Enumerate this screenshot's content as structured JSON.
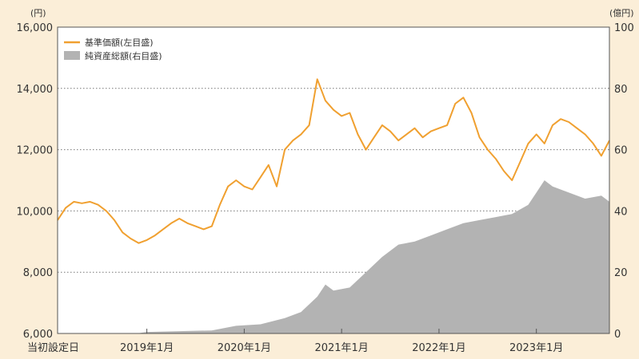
{
  "chart_data": {
    "type": "line",
    "left_unit": "(円)",
    "right_unit": "(億円)",
    "left_axis": {
      "min": 6000,
      "max": 16000,
      "ticks": [
        6000,
        8000,
        10000,
        12000,
        14000,
        16000
      ],
      "tick_labels": [
        "6,000",
        "8,000",
        "10,000",
        "12,000",
        "14,000",
        "16,000"
      ]
    },
    "right_axis": {
      "min": 0,
      "max": 100,
      "ticks": [
        0,
        20,
        40,
        60,
        80,
        100
      ],
      "tick_labels": [
        "0",
        "20",
        "40",
        "60",
        "80",
        "100"
      ]
    },
    "x_axis": {
      "start": "2018-02",
      "end": "2023-10",
      "tick_dates": [
        "2019-01",
        "2020-01",
        "2021-01",
        "2022-01",
        "2023-01"
      ],
      "labels": [
        {
          "date": "2018-02",
          "text": "当初設定日"
        },
        {
          "date": "2019-01",
          "text": "2019年1月"
        },
        {
          "date": "2020-01",
          "text": "2020年1月"
        },
        {
          "date": "2021-01",
          "text": "2021年1月"
        },
        {
          "date": "2022-01",
          "text": "2022年1月"
        },
        {
          "date": "2023-01",
          "text": "2023年1月"
        }
      ]
    },
    "grid": true,
    "legend_position": "top-left",
    "series": [
      {
        "name": "基準価額(左目盛)",
        "axis": "left",
        "kind": "line",
        "color": "#f0a030",
        "points": [
          [
            "2018-02",
            9700
          ],
          [
            "2018-03",
            10100
          ],
          [
            "2018-04",
            10300
          ],
          [
            "2018-05",
            10250
          ],
          [
            "2018-06",
            10300
          ],
          [
            "2018-07",
            10200
          ],
          [
            "2018-08",
            10000
          ],
          [
            "2018-09",
            9700
          ],
          [
            "2018-10",
            9300
          ],
          [
            "2018-11",
            9100
          ],
          [
            "2018-12",
            8950
          ],
          [
            "2019-01",
            9050
          ],
          [
            "2019-02",
            9200
          ],
          [
            "2019-03",
            9400
          ],
          [
            "2019-04",
            9600
          ],
          [
            "2019-05",
            9750
          ],
          [
            "2019-06",
            9600
          ],
          [
            "2019-07",
            9500
          ],
          [
            "2019-08",
            9400
          ],
          [
            "2019-09",
            9500
          ],
          [
            "2019-10",
            10200
          ],
          [
            "2019-11",
            10800
          ],
          [
            "2019-12",
            11000
          ],
          [
            "2020-01",
            10800
          ],
          [
            "2020-02",
            10700
          ],
          [
            "2020-03",
            11100
          ],
          [
            "2020-04",
            11500
          ],
          [
            "2020-05",
            10800
          ],
          [
            "2020-06",
            12000
          ],
          [
            "2020-07",
            12300
          ],
          [
            "2020-08",
            12500
          ],
          [
            "2020-09",
            12800
          ],
          [
            "2020-10",
            14300
          ],
          [
            "2020-11",
            13600
          ],
          [
            "2020-12",
            13300
          ],
          [
            "2021-01",
            13100
          ],
          [
            "2021-02",
            13200
          ],
          [
            "2021-03",
            12500
          ],
          [
            "2021-04",
            12000
          ],
          [
            "2021-05",
            12400
          ],
          [
            "2021-06",
            12800
          ],
          [
            "2021-07",
            12600
          ],
          [
            "2021-08",
            12300
          ],
          [
            "2021-09",
            12500
          ],
          [
            "2021-10",
            12700
          ],
          [
            "2021-11",
            12400
          ],
          [
            "2021-12",
            12600
          ],
          [
            "2022-01",
            12700
          ],
          [
            "2022-02",
            12800
          ],
          [
            "2022-03",
            13500
          ],
          [
            "2022-04",
            13700
          ],
          [
            "2022-05",
            13200
          ],
          [
            "2022-06",
            12400
          ],
          [
            "2022-07",
            12000
          ],
          [
            "2022-08",
            11700
          ],
          [
            "2022-09",
            11300
          ],
          [
            "2022-10",
            11000
          ],
          [
            "2022-11",
            11600
          ],
          [
            "2022-12",
            12200
          ],
          [
            "2023-01",
            12500
          ],
          [
            "2023-02",
            12200
          ],
          [
            "2023-03",
            12800
          ],
          [
            "2023-04",
            13000
          ],
          [
            "2023-05",
            12900
          ],
          [
            "2023-06",
            12700
          ],
          [
            "2023-07",
            12500
          ],
          [
            "2023-08",
            12200
          ],
          [
            "2023-09",
            11800
          ],
          [
            "2023-10",
            12300
          ]
        ]
      },
      {
        "name": "純資産総額(右目盛)",
        "axis": "right",
        "kind": "area",
        "color": "#b3b3b3",
        "points": [
          [
            "2018-02",
            0
          ],
          [
            "2018-06",
            0
          ],
          [
            "2018-12",
            0.1
          ],
          [
            "2019-01",
            0.5
          ],
          [
            "2019-06",
            0.8
          ],
          [
            "2019-09",
            1
          ],
          [
            "2019-12",
            2.5
          ],
          [
            "2020-03",
            3
          ],
          [
            "2020-06",
            5
          ],
          [
            "2020-08",
            7
          ],
          [
            "2020-10",
            12
          ],
          [
            "2020-11",
            16
          ],
          [
            "2020-12",
            14
          ],
          [
            "2021-02",
            15
          ],
          [
            "2021-04",
            20
          ],
          [
            "2021-06",
            25
          ],
          [
            "2021-08",
            29
          ],
          [
            "2021-10",
            30
          ],
          [
            "2021-12",
            32
          ],
          [
            "2022-02",
            34
          ],
          [
            "2022-04",
            36
          ],
          [
            "2022-06",
            37
          ],
          [
            "2022-08",
            38
          ],
          [
            "2022-10",
            39
          ],
          [
            "2022-12",
            42
          ],
          [
            "2023-01",
            46
          ],
          [
            "2023-02",
            50
          ],
          [
            "2023-03",
            48
          ],
          [
            "2023-05",
            46
          ],
          [
            "2023-07",
            44
          ],
          [
            "2023-09",
            45
          ],
          [
            "2023-10",
            43
          ]
        ]
      }
    ]
  }
}
